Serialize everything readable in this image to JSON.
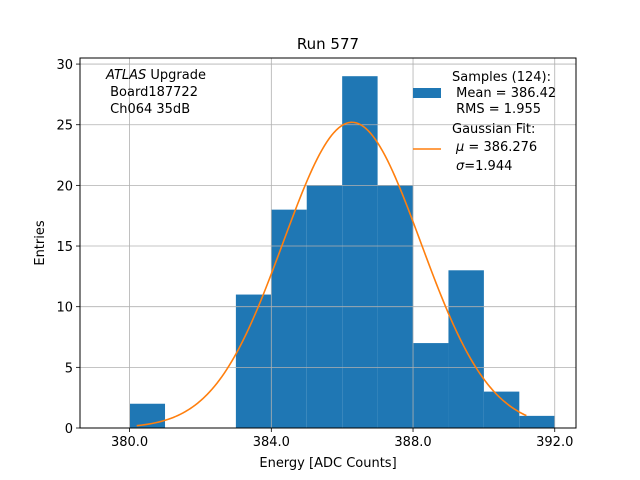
{
  "chart_data": {
    "type": "bar",
    "title": "Run 577",
    "xlabel": "Energy [ADC Counts]",
    "ylabel": "Entries",
    "xlim": [
      378.6,
      392.6
    ],
    "ylim": [
      0,
      30.5
    ],
    "grid": true,
    "x_ticks": [
      380.0,
      384.0,
      388.0,
      392.0
    ],
    "x_tick_labels": [
      "380.0",
      "384.0",
      "388.0",
      "392.0"
    ],
    "y_ticks": [
      0,
      5,
      10,
      15,
      20,
      25,
      30
    ],
    "y_tick_labels": [
      "0",
      "5",
      "10",
      "15",
      "20",
      "25",
      "30"
    ],
    "bin_width": 1,
    "bins": [
      {
        "left": 380,
        "count": 2
      },
      {
        "left": 383,
        "count": 11
      },
      {
        "left": 384,
        "count": 18
      },
      {
        "left": 385,
        "count": 20
      },
      {
        "left": 386,
        "count": 29
      },
      {
        "left": 387,
        "count": 20
      },
      {
        "left": 388,
        "count": 7
      },
      {
        "left": 389,
        "count": 13
      },
      {
        "left": 390,
        "count": 3
      },
      {
        "left": 391,
        "count": 1
      }
    ],
    "fit": {
      "name": "Gaussian Fit",
      "mu": 386.276,
      "sigma": 1.944,
      "amplitude": 25.2,
      "x_range": [
        380.2,
        391.2
      ]
    },
    "colors": {
      "bars": "#1f77b4",
      "fit": "#ff7f0e",
      "grid": "#b0b0b0",
      "axes": "#000000"
    },
    "annotation": {
      "line1_italic": "ATLAS",
      "line1_rest": " Upgrade",
      "line2": " Board187722",
      "line3": " Ch064 35dB"
    },
    "legend": {
      "position": "top-right",
      "samples_line1": "Samples (124):",
      "samples_line2": " Mean = 386.42",
      "samples_line3": " RMS = 1.955",
      "fit_line1": "Gaussian Fit:",
      "fit_mu_symbol": "μ",
      "fit_mu_rest": " = 386.276",
      "fit_sigma_symbol": "σ",
      "fit_sigma_rest": "=1.944"
    }
  }
}
